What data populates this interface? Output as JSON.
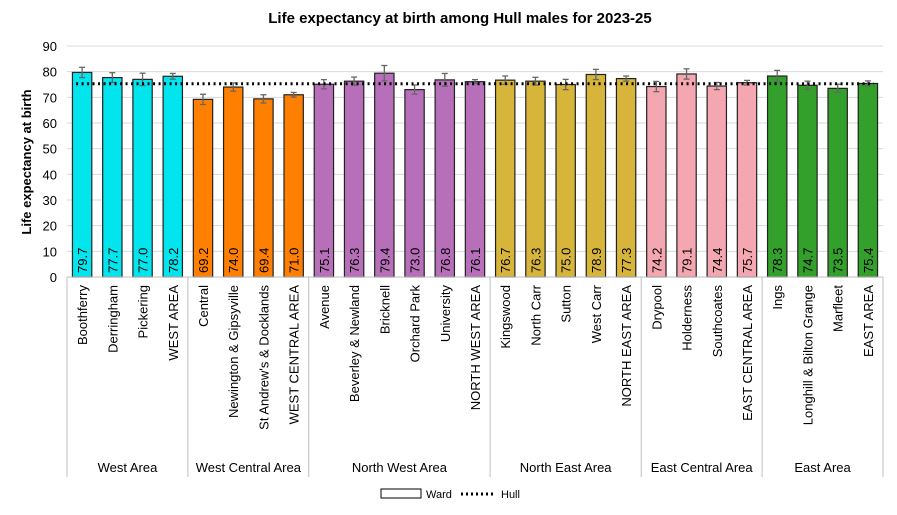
{
  "chart_data": {
    "type": "bar",
    "title": "Life expectancy at birth among Hull males for 2023-25",
    "ylabel": "Life expectancy at birth",
    "xlabel": "",
    "ylim": [
      0,
      90
    ],
    "yticks": [
      0,
      10,
      20,
      30,
      40,
      50,
      60,
      70,
      80,
      90
    ],
    "grid": true,
    "legend_position": "bottom",
    "legend": [
      {
        "label": "Ward",
        "type": "bar"
      },
      {
        "label": "Hull",
        "type": "dotted-line"
      }
    ],
    "reference_line": {
      "name": "Hull",
      "value": 75.3
    },
    "groups": [
      {
        "name": "West Area",
        "color": "#00E5EE",
        "categories": [
          "Boothferry",
          "Derringham",
          "Pickering",
          "WEST AREA"
        ],
        "values": [
          79.7,
          77.7,
          77.0,
          78.2
        ],
        "error": [
          2.0,
          1.9,
          2.4,
          1.1
        ]
      },
      {
        "name": "West Central Area",
        "color": "#FF8000",
        "categories": [
          "Central",
          "Newington & Gipsyville",
          "St Andrew's & Docklands",
          "WEST CENTRAL AREA"
        ],
        "values": [
          69.2,
          74.0,
          69.4,
          71.0
        ],
        "error": [
          2.0,
          1.6,
          1.6,
          0.9
        ]
      },
      {
        "name": "North West Area",
        "color": "#B86FBA",
        "categories": [
          "Avenue",
          "Beverley & Newland",
          "Bricknell",
          "Orchard Park",
          "University",
          "NORTH WEST AREA"
        ],
        "values": [
          75.1,
          76.3,
          79.4,
          73.0,
          76.8,
          76.1
        ],
        "error": [
          1.8,
          1.6,
          3.0,
          1.8,
          2.5,
          0.8
        ]
      },
      {
        "name": "North East Area",
        "color": "#D6B53A",
        "categories": [
          "Kingswood",
          "North Carr",
          "Sutton",
          "West Carr",
          "NORTH EAST AREA"
        ],
        "values": [
          76.7,
          76.3,
          75.0,
          78.9,
          77.3
        ],
        "error": [
          1.6,
          1.5,
          2.0,
          2.0,
          1.0
        ]
      },
      {
        "name": "East Central Area",
        "color": "#F4A7B0",
        "categories": [
          "Drypool",
          "Holderness",
          "Southcoates",
          "EAST CENTRAL AREA"
        ],
        "values": [
          74.2,
          79.1,
          74.4,
          75.7
        ],
        "error": [
          2.0,
          2.0,
          1.4,
          0.9
        ]
      },
      {
        "name": "East Area",
        "color": "#33A02C",
        "categories": [
          "Ings",
          "Longhill & Bilton Grange",
          "Marfleet",
          "EAST AREA"
        ],
        "values": [
          78.3,
          74.7,
          73.5,
          75.4
        ],
        "error": [
          2.2,
          1.6,
          1.6,
          1.0
        ]
      }
    ]
  }
}
